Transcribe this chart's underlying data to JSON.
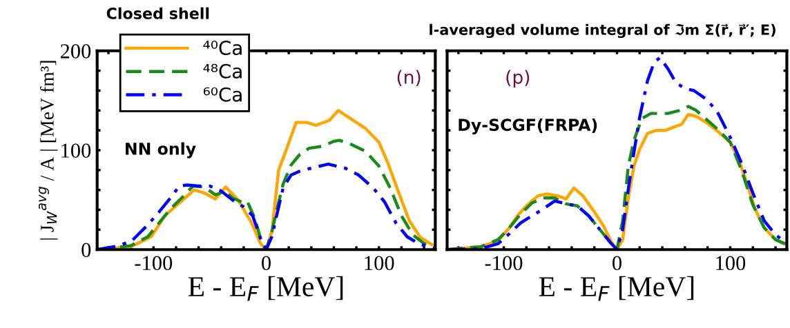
{
  "chart_data": [
    {
      "type": "line",
      "xlabel": "E - E$_{F}$ [MeV]",
      "ylabel": "| J$_{W}$$^{avg}$ / A | [MeV fm³]",
      "legend": "top left",
      "legend_title": "Closed shell",
      "annotations": [
        "NN only",
        "(n)"
      ],
      "xlim": [
        -150,
        150
      ],
      "ylim": [
        0,
        200
      ],
      "xticks": [
        {
          "value": -140,
          "label": null
        },
        {
          "value": -120,
          "label": null
        },
        -100,
        {
          "value": -80,
          "label": null
        },
        {
          "value": -60,
          "label": null
        },
        {
          "value": -40,
          "label": null
        },
        {
          "value": -20,
          "label": null
        },
        0,
        {
          "value": 20,
          "label": null
        },
        {
          "value": 40,
          "label": null
        },
        {
          "value": 60,
          "label": null
        },
        {
          "value": 80,
          "label": null
        },
        100,
        {
          "value": 120,
          "label": null
        },
        {
          "value": 140,
          "label": null
        }
      ],
      "yticks": [
        0,
        {
          "value": 20,
          "label": null
        },
        {
          "value": 40,
          "label": null
        },
        {
          "value": 60,
          "label": null
        },
        {
          "value": 80,
          "label": null
        },
        100,
        {
          "value": 120,
          "label": null
        },
        {
          "value": 140,
          "label": null
        },
        {
          "value": 160,
          "label": null
        },
        {
          "value": 180,
          "label": null
        },
        200
      ],
      "series": [
        {
          "name": "⁴⁰Ca",
          "color": "#ffa500",
          "line_style": "solid",
          "x": [
            -150,
            -120,
            -102,
            -90,
            -76,
            -64,
            -55,
            -45,
            -36,
            -25,
            -13,
            -5,
            0,
            5,
            11,
            18,
            26.5,
            36,
            44,
            56,
            64,
            76,
            88,
            100,
            108,
            117,
            127,
            137,
            147
          ],
          "values": [
            0,
            3,
            13,
            34,
            48,
            60,
            57,
            51,
            63,
            50,
            27,
            6,
            0,
            18,
            80,
            101,
            128,
            128,
            125,
            130,
            140,
            131,
            122,
            108,
            87,
            59,
            29,
            12,
            5
          ]
        },
        {
          "name": "⁴⁸Ca",
          "color": "#1a8a1a",
          "line_style": "dashed",
          "x": [
            -150,
            -120,
            -105,
            -95,
            -85,
            -75,
            -65,
            -55,
            -45,
            -37,
            -30,
            -22,
            -17,
            -10,
            -5,
            0,
            5,
            10,
            15,
            22,
            30,
            38,
            50,
            60,
            65,
            75,
            88,
            100,
            110,
            120,
            130,
            140,
            150
          ],
          "values": [
            0,
            4,
            13,
            27,
            41,
            52,
            64,
            63,
            55,
            59,
            52,
            48,
            49,
            31,
            11,
            0,
            18,
            43,
            66,
            85,
            96,
            102,
            104,
            109,
            110,
            106,
            99,
            84,
            62,
            34,
            15,
            6,
            4
          ]
        },
        {
          "name": "⁶⁰Ca",
          "color": "#0000ff",
          "line_style": "dashdot",
          "x": [
            -150,
            -135,
            -120,
            -105,
            -95,
            -85,
            -77,
            -70,
            -60,
            -50,
            -40,
            -30,
            -20,
            -12,
            -5,
            0,
            5,
            10,
            15,
            22,
            30,
            40,
            55,
            70,
            82,
            95,
            105,
            115,
            125,
            135,
            150
          ],
          "values": [
            0,
            3,
            8,
            25,
            38,
            52,
            64,
            65,
            64,
            64,
            59,
            50,
            43,
            34,
            11,
            0,
            13,
            38,
            62,
            75,
            79,
            82,
            86,
            82,
            75,
            62,
            48,
            27,
            13,
            6,
            1
          ]
        }
      ]
    },
    {
      "type": "line",
      "title": "l-averaged volume integral of ℑm Σ(r⃗, r⃗′; E)",
      "xlabel": "E - E$_{F}$ [MeV]",
      "annotations": [
        "(p)",
        "Dy-SCGF(FRPA)"
      ],
      "tick_labels": "x",
      "xlim": [
        -150,
        150
      ],
      "ylim": [
        0,
        200
      ],
      "xticks": [
        {
          "value": -140,
          "label": null
        },
        {
          "value": -120,
          "label": null
        },
        -100,
        {
          "value": -80,
          "label": null
        },
        {
          "value": -60,
          "label": null
        },
        {
          "value": -40,
          "label": null
        },
        {
          "value": -20,
          "label": null
        },
        0,
        {
          "value": 20,
          "label": null
        },
        {
          "value": 40,
          "label": null
        },
        {
          "value": 60,
          "label": null
        },
        {
          "value": 80,
          "label": null
        },
        100,
        {
          "value": 120,
          "label": null
        },
        {
          "value": 140,
          "label": null
        }
      ],
      "yticks": [
        0,
        {
          "value": 20,
          "label": null
        },
        {
          "value": 40,
          "label": null
        },
        {
          "value": 60,
          "label": null
        },
        {
          "value": 80,
          "label": null
        },
        100,
        {
          "value": 120,
          "label": null
        },
        {
          "value": 140,
          "label": null
        },
        {
          "value": 160,
          "label": null
        },
        {
          "value": 180,
          "label": null
        },
        200
      ],
      "series": [
        {
          "color": "#ffa500",
          "line_style": "solid",
          "x": [
            -150,
            -120,
            -105,
            -95,
            -88,
            -80,
            -70,
            -62,
            -52,
            -45,
            -38,
            -30,
            -20,
            -12,
            -5,
            0,
            5,
            10,
            15,
            20,
            27,
            35,
            43,
            52,
            57,
            63,
            70,
            80,
            90,
            100,
            108,
            115,
            122,
            130,
            140,
            150
          ],
          "values": [
            0,
            3,
            9,
            22,
            34,
            44,
            54,
            56,
            54,
            51,
            62,
            54,
            38,
            24,
            8,
            0,
            10,
            52,
            84,
            101,
            117,
            120,
            120,
            124,
            126,
            136,
            134,
            127,
            118,
            108,
            89,
            66,
            41,
            22,
            10,
            5
          ]
        },
        {
          "color": "#1a8a1a",
          "line_style": "dashed",
          "x": [
            -150,
            -120,
            -105,
            -95,
            -85,
            -75,
            -65,
            -55,
            -45,
            -35,
            -25,
            -15,
            -5,
            0,
            5,
            10,
            15,
            22,
            30,
            45,
            55,
            63,
            70,
            80,
            90,
            100,
            110,
            120,
            130,
            140,
            150
          ],
          "values": [
            0,
            3,
            10,
            22,
            36,
            47,
            52,
            52,
            46,
            44,
            34,
            20,
            6,
            0,
            29,
            84,
            110,
            132,
            137,
            137,
            140,
            144,
            140,
            130,
            120,
            108,
            80,
            45,
            22,
            10,
            5
          ]
        },
        {
          "color": "#0000ff",
          "line_style": "dashdot",
          "x": [
            -150,
            -120,
            -105,
            -95,
            -85,
            -75,
            -65,
            -55,
            -45,
            -35,
            -25,
            -15,
            -5,
            0,
            5,
            10,
            15,
            20,
            27,
            33,
            38,
            45,
            52,
            60,
            68,
            78,
            88,
            100,
            110,
            120,
            130,
            140,
            150
          ],
          "values": [
            0,
            1,
            6,
            16,
            27,
            34,
            41,
            49,
            46,
            44,
            34,
            20,
            6,
            0,
            20,
            61,
            98,
            133,
            170,
            189,
            193,
            182,
            168,
            162,
            160,
            152,
            140,
            113,
            87,
            57,
            29,
            15,
            6
          ]
        }
      ]
    }
  ]
}
